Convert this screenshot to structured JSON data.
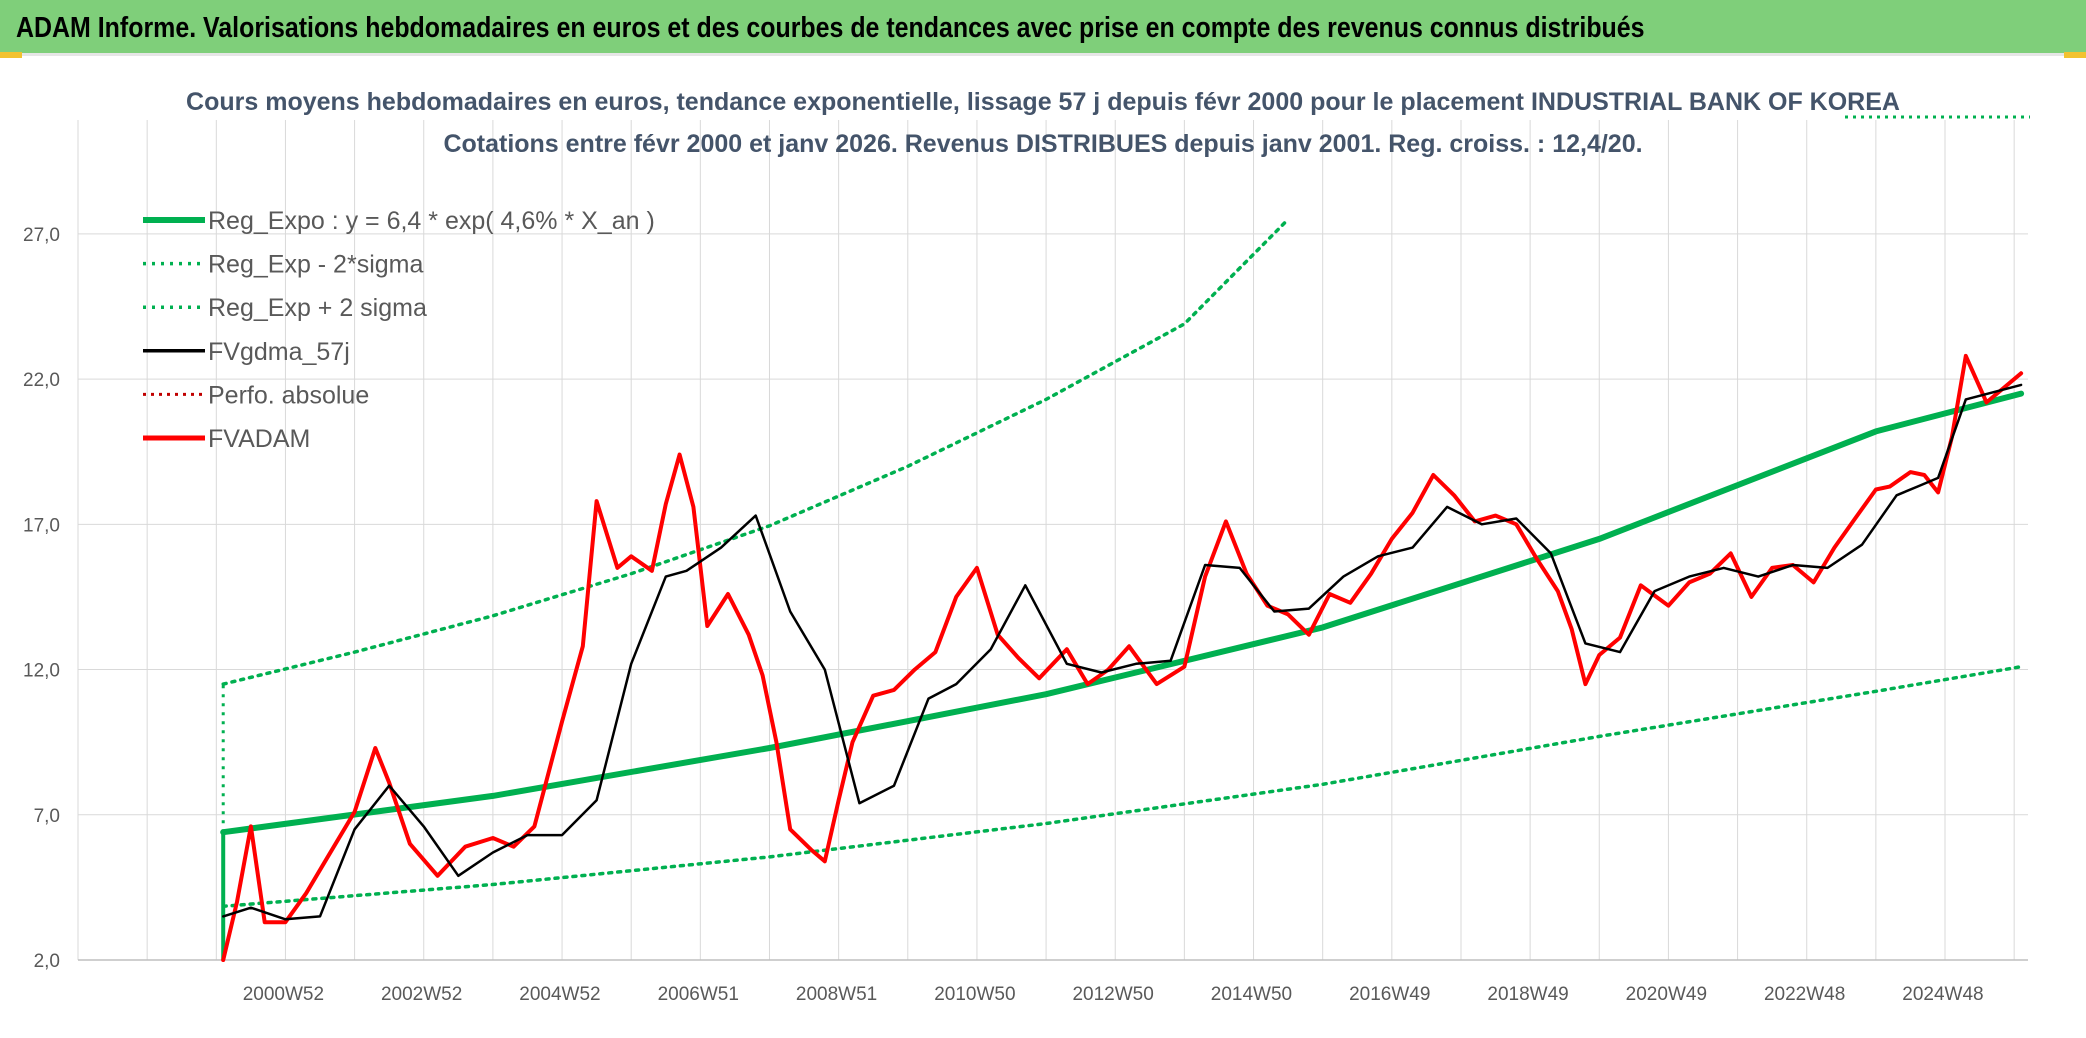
{
  "header": {
    "title": "ADAM Informe. Valorisations hebdomadaires en euros et des courbes de tendances avec prise en compte des revenus connus distribués"
  },
  "colors": {
    "header_bg": "#7fcf7a",
    "corner_accent": "#f2c230",
    "reg_expo": "#00b050",
    "fvgdma": "#000000",
    "fvadam": "#ff0000",
    "perfo": "#c00000",
    "grid": "#d9d9d9",
    "subtitle": "#44546a"
  },
  "chart_data": {
    "type": "line",
    "title": "Cours moyens hebdomadaires en euros, tendance exponentielle, lissage 57 j depuis févr 2000 pour le placement INDUSTRIAL BANK OF KOREA",
    "subtitle": "Cotations entre févr 2000 et janv 2026. Revenus DISTRIBUES depuis janv 2001. Reg. croiss. : 12,4/20.",
    "xlabel": "",
    "ylabel": "",
    "ylim": [
      2,
      29.2
    ],
    "y_ticks": [
      "27,0",
      "22,0",
      "17,0",
      "12,0",
      "7,0",
      "2,0"
    ],
    "y_tick_values": [
      27,
      22,
      17,
      12,
      7,
      2
    ],
    "x_tick_labels": [
      "2000W52",
      "2002W52",
      "2004W52",
      "2006W51",
      "2008W51",
      "2010W50",
      "2012W50",
      "2014W50",
      "2016W49",
      "2018W49",
      "2020W49",
      "2022W48",
      "2024W48"
    ],
    "x_range": [
      1998.0,
      2026.2
    ],
    "data_start": 2000.1,
    "grid": "horizontal and vertical",
    "legend_position": "top-left",
    "legend": [
      {
        "label": "Reg_Expo : y = 6,4 * exp( 4,6% *  X_an )",
        "style": "thick-solid-green"
      },
      {
        "label": "Reg_Exp - 2*sigma",
        "style": "dotted-green"
      },
      {
        "label": "Reg_Exp + 2 sigma",
        "style": "dotted-green"
      },
      {
        "label": "FVgdma_57j",
        "style": "solid-black"
      },
      {
        "label": "Perfo. absolue",
        "style": "dotted-red"
      },
      {
        "label": "FVADAM",
        "style": "thick-solid-red"
      }
    ],
    "series": [
      {
        "name": "Reg_Expo : y = 6,4 * exp( 4,6% *  X_an )",
        "x": [
          2000.1,
          2004,
          2008,
          2012,
          2016,
          2020,
          2024,
          2026.1
        ],
        "values": [
          6.4,
          7.65,
          9.3,
          11.15,
          13.45,
          16.5,
          20.2,
          21.5
        ]
      },
      {
        "name": "Reg_Exp - 2*sigma",
        "x": [
          2000.1,
          2004,
          2008,
          2012,
          2016,
          2020,
          2024,
          2026.1
        ],
        "values": [
          3.85,
          4.6,
          5.55,
          6.7,
          8.05,
          9.7,
          11.25,
          12.1
        ]
      },
      {
        "name": "Reg_Exp + 2 sigma",
        "x": [
          2000.1,
          2002,
          2004,
          2006,
          2008,
          2010,
          2012,
          2014,
          2015.5
        ],
        "values": [
          11.5,
          12.6,
          13.85,
          15.3,
          16.95,
          19.0,
          21.3,
          23.9,
          27.5
        ]
      },
      {
        "name": "FVgdma_57j",
        "x": [
          2000.1,
          2000.5,
          2001.0,
          2001.5,
          2002.0,
          2002.5,
          2003.0,
          2003.5,
          2004.0,
          2004.5,
          2005.0,
          2005.5,
          2006.0,
          2006.5,
          2006.8,
          2007.3,
          2007.8,
          2008.3,
          2008.8,
          2009.3,
          2009.8,
          2010.3,
          2010.7,
          2011.2,
          2011.7,
          2012.3,
          2012.8,
          2013.3,
          2013.8,
          2014.3,
          2014.8,
          2015.3,
          2015.8,
          2016.3,
          2016.8,
          2017.3,
          2017.8,
          2018.3,
          2018.8,
          2019.3,
          2019.8,
          2020.3,
          2020.8,
          2021.3,
          2021.8,
          2022.3,
          2022.8,
          2023.3,
          2023.8,
          2024.3,
          2024.6,
          2024.9,
          2025.3,
          2026.1
        ],
        "values": [
          3.5,
          3.8,
          3.4,
          3.5,
          6.5,
          8.0,
          6.6,
          4.9,
          5.7,
          6.3,
          6.3,
          7.5,
          12.2,
          15.2,
          15.4,
          16.2,
          17.3,
          14.0,
          12.0,
          7.4,
          8.0,
          11.0,
          11.5,
          12.7,
          14.9,
          12.2,
          11.9,
          12.2,
          12.3,
          15.6,
          15.5,
          14.0,
          14.1,
          15.2,
          15.9,
          16.2,
          17.6,
          17.0,
          17.2,
          16.0,
          12.9,
          12.6,
          14.7,
          15.2,
          15.5,
          15.2,
          15.6,
          15.5,
          16.3,
          18.0,
          18.3,
          18.6,
          21.3,
          21.8
        ]
      },
      {
        "name": "FVADAM",
        "x": [
          2000.1,
          2000.3,
          2000.5,
          2000.7,
          2001.0,
          2001.3,
          2001.6,
          2002.0,
          2002.3,
          2002.5,
          2002.8,
          2003.2,
          2003.6,
          2004.0,
          2004.3,
          2004.6,
          2005.0,
          2005.3,
          2005.5,
          2005.8,
          2006.0,
          2006.3,
          2006.5,
          2006.7,
          2006.9,
          2007.1,
          2007.4,
          2007.7,
          2007.9,
          2008.1,
          2008.3,
          2008.6,
          2008.8,
          2009.0,
          2009.2,
          2009.5,
          2009.8,
          2010.1,
          2010.4,
          2010.7,
          2011.0,
          2011.3,
          2011.6,
          2011.9,
          2012.3,
          2012.6,
          2012.9,
          2013.2,
          2013.6,
          2014.0,
          2014.3,
          2014.6,
          2014.9,
          2015.2,
          2015.5,
          2015.8,
          2016.1,
          2016.4,
          2016.7,
          2017.0,
          2017.3,
          2017.6,
          2017.9,
          2018.2,
          2018.5,
          2018.8,
          2019.1,
          2019.4,
          2019.6,
          2019.8,
          2020.0,
          2020.3,
          2020.6,
          2021.0,
          2021.3,
          2021.6,
          2021.9,
          2022.2,
          2022.5,
          2022.8,
          2023.1,
          2023.4,
          2023.7,
          2024.0,
          2024.2,
          2024.5,
          2024.7,
          2024.9,
          2025.1,
          2025.3,
          2025.6,
          2026.1
        ],
        "values": [
          2.0,
          4.0,
          6.6,
          3.3,
          3.3,
          4.3,
          5.5,
          7.1,
          9.3,
          8.1,
          6.0,
          4.9,
          5.9,
          6.2,
          5.9,
          6.6,
          10.2,
          12.8,
          17.8,
          15.5,
          15.9,
          15.4,
          17.7,
          19.4,
          17.6,
          13.5,
          14.6,
          13.2,
          11.8,
          9.5,
          6.5,
          5.8,
          5.4,
          7.5,
          9.5,
          11.1,
          11.3,
          12.0,
          12.6,
          14.5,
          15.5,
          13.2,
          12.4,
          11.7,
          12.7,
          11.5,
          12.0,
          12.8,
          11.5,
          12.1,
          15.2,
          17.1,
          15.3,
          14.2,
          13.9,
          13.2,
          14.6,
          14.3,
          15.3,
          16.5,
          17.4,
          18.7,
          18.0,
          17.1,
          17.3,
          17.0,
          15.8,
          14.7,
          13.4,
          11.5,
          12.5,
          13.1,
          14.9,
          14.2,
          15.0,
          15.3,
          16.0,
          14.5,
          15.5,
          15.6,
          15.0,
          16.2,
          17.2,
          18.2,
          18.3,
          18.8,
          18.7,
          18.1,
          20.0,
          22.8,
          21.2,
          22.2
        ]
      }
    ]
  }
}
